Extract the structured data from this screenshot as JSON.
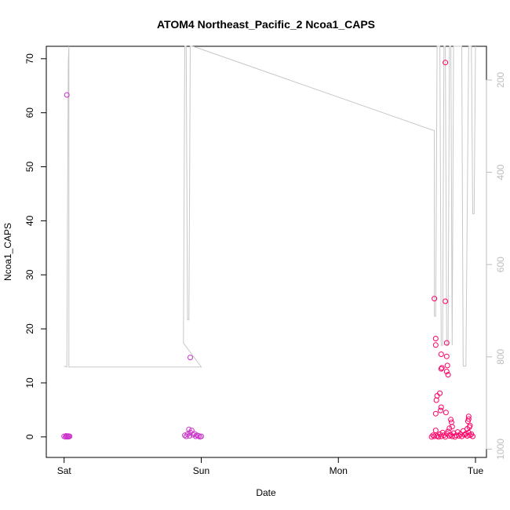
{
  "chart_data": {
    "type": "scatter",
    "title": "ATOM4 Northeast_Pacific_2 Ncoa1_CAPS",
    "xlabel": "Date",
    "ylabel": "Ncoa1_CAPS",
    "x_unit": "days since Sat 00:00",
    "xlim": [
      -0.13,
      3.08
    ],
    "ylim": [
      -3.8,
      72.3
    ],
    "x_ticks": [
      {
        "label": "Sat",
        "value": 0
      },
      {
        "label": "Sun",
        "value": 1
      },
      {
        "label": "Mon",
        "value": 2
      },
      {
        "label": "Tue",
        "value": 3
      }
    ],
    "y_ticks": [
      0,
      10,
      20,
      30,
      40,
      50,
      60,
      70
    ],
    "secondary_axis": {
      "side": "right",
      "reversed": true,
      "color": "#bdbdbd",
      "ticks": [
        200,
        400,
        600,
        800,
        1000
      ],
      "range": [
        1018,
        127
      ]
    },
    "grid": false,
    "legend": "none",
    "colors": {
      "points_early": "#cc33cc",
      "points_late": "#ff0066",
      "depth_line": "#c8c8c8"
    },
    "points": [
      {
        "x": 0.02,
        "y": 63.3
      },
      {
        "x": 0.0,
        "y": 0.1
      },
      {
        "x": 0.01,
        "y": 0.0
      },
      {
        "x": 0.015,
        "y": 0.2
      },
      {
        "x": 0.02,
        "y": 0.1
      },
      {
        "x": 0.025,
        "y": 0.0
      },
      {
        "x": 0.03,
        "y": 0.15
      },
      {
        "x": 0.035,
        "y": 0.05
      },
      {
        "x": 0.04,
        "y": 0.1
      },
      {
        "x": 0.92,
        "y": 14.7
      },
      {
        "x": 0.88,
        "y": 0.3
      },
      {
        "x": 0.89,
        "y": 0.1
      },
      {
        "x": 0.9,
        "y": 0.5
      },
      {
        "x": 0.91,
        "y": 1.4
      },
      {
        "x": 0.915,
        "y": 0.2
      },
      {
        "x": 0.92,
        "y": 0.8
      },
      {
        "x": 0.93,
        "y": 1.2
      },
      {
        "x": 0.94,
        "y": 0.4
      },
      {
        "x": 0.95,
        "y": 0.6
      },
      {
        "x": 0.96,
        "y": 0.1
      },
      {
        "x": 0.97,
        "y": 0.3
      },
      {
        "x": 0.98,
        "y": 0.2
      },
      {
        "x": 0.99,
        "y": 0.0
      },
      {
        "x": 1.0,
        "y": 0.1
      },
      {
        "x": 2.7,
        "y": 25.6
      },
      {
        "x": 2.71,
        "y": 18.2
      },
      {
        "x": 2.71,
        "y": 17.0
      },
      {
        "x": 2.72,
        "y": 7.6
      },
      {
        "x": 2.715,
        "y": 6.8
      },
      {
        "x": 2.71,
        "y": 4.3
      },
      {
        "x": 2.75,
        "y": 15.3
      },
      {
        "x": 2.75,
        "y": 12.6
      },
      {
        "x": 2.755,
        "y": 12.8
      },
      {
        "x": 2.74,
        "y": 8.1
      },
      {
        "x": 2.75,
        "y": 5.5
      },
      {
        "x": 2.745,
        "y": 4.9
      },
      {
        "x": 2.78,
        "y": 69.3
      },
      {
        "x": 2.78,
        "y": 25.1
      },
      {
        "x": 2.79,
        "y": 17.4
      },
      {
        "x": 2.79,
        "y": 14.9
      },
      {
        "x": 2.795,
        "y": 13.2
      },
      {
        "x": 2.79,
        "y": 12.1
      },
      {
        "x": 2.8,
        "y": 11.5
      },
      {
        "x": 2.785,
        "y": 4.5
      },
      {
        "x": 2.82,
        "y": 3.2
      },
      {
        "x": 2.825,
        "y": 2.7
      },
      {
        "x": 2.83,
        "y": 1.9
      },
      {
        "x": 2.81,
        "y": 1.6
      },
      {
        "x": 2.95,
        "y": 3.8
      },
      {
        "x": 2.95,
        "y": 3.3
      },
      {
        "x": 2.945,
        "y": 2.9
      },
      {
        "x": 2.96,
        "y": 2.1
      },
      {
        "x": 2.955,
        "y": 1.8
      },
      {
        "x": 2.94,
        "y": 1.5
      },
      {
        "x": 2.68,
        "y": 0.0
      },
      {
        "x": 2.69,
        "y": 0.3
      },
      {
        "x": 2.7,
        "y": 0.1
      },
      {
        "x": 2.71,
        "y": 1.2
      },
      {
        "x": 2.72,
        "y": 0.2
      },
      {
        "x": 2.73,
        "y": 0.0
      },
      {
        "x": 2.74,
        "y": 0.5
      },
      {
        "x": 2.75,
        "y": 0.1
      },
      {
        "x": 2.76,
        "y": 0.8
      },
      {
        "x": 2.77,
        "y": 0.3
      },
      {
        "x": 2.78,
        "y": 0.0
      },
      {
        "x": 2.79,
        "y": 0.6
      },
      {
        "x": 2.8,
        "y": 1.0
      },
      {
        "x": 2.81,
        "y": 0.2
      },
      {
        "x": 2.82,
        "y": 0.4
      },
      {
        "x": 2.83,
        "y": 0.1
      },
      {
        "x": 2.84,
        "y": 0.7
      },
      {
        "x": 2.85,
        "y": 0.0
      },
      {
        "x": 2.86,
        "y": 0.3
      },
      {
        "x": 2.87,
        "y": 0.9
      },
      {
        "x": 2.88,
        "y": 0.2
      },
      {
        "x": 2.89,
        "y": 0.5
      },
      {
        "x": 2.9,
        "y": 0.1
      },
      {
        "x": 2.91,
        "y": 1.1
      },
      {
        "x": 2.92,
        "y": 0.4
      },
      {
        "x": 2.93,
        "y": 0.6
      },
      {
        "x": 2.94,
        "y": 0.2
      },
      {
        "x": 2.95,
        "y": 0.8
      },
      {
        "x": 2.96,
        "y": 0.3
      },
      {
        "x": 2.97,
        "y": 0.5
      },
      {
        "x": 2.98,
        "y": 0.1
      }
    ],
    "depth_series": [
      {
        "x": 0.0,
        "y": 820
      },
      {
        "x": 0.02,
        "y": 822
      },
      {
        "x": 0.03,
        "y": 160
      },
      {
        "x": 0.035,
        "y": 120
      },
      {
        "x": 0.035,
        "y": 822
      },
      {
        "x": 0.9,
        "y": 822
      },
      {
        "x": 0.95,
        "y": 822
      },
      {
        "x": 1.0,
        "y": 822
      },
      {
        "x": 0.87,
        "y": 770
      },
      {
        "x": 0.88,
        "y": 120
      },
      {
        "x": 0.89,
        "y": 120
      },
      {
        "x": 0.9,
        "y": 720
      },
      {
        "x": 0.91,
        "y": 720
      },
      {
        "x": 0.92,
        "y": 120
      },
      {
        "x": 0.93,
        "y": 120
      },
      {
        "x": 0.95,
        "y": 128
      },
      {
        "x": 2.7,
        "y": 310
      },
      {
        "x": 2.7,
        "y": 712
      },
      {
        "x": 2.71,
        "y": 712
      },
      {
        "x": 2.72,
        "y": 120
      },
      {
        "x": 2.74,
        "y": 120
      },
      {
        "x": 2.75,
        "y": 775
      },
      {
        "x": 2.76,
        "y": 775
      },
      {
        "x": 2.77,
        "y": 120
      },
      {
        "x": 2.78,
        "y": 120
      },
      {
        "x": 2.79,
        "y": 775
      },
      {
        "x": 2.8,
        "y": 775
      },
      {
        "x": 2.81,
        "y": 120
      },
      {
        "x": 2.82,
        "y": 120
      },
      {
        "x": 2.83,
        "y": 775
      },
      {
        "x": 2.84,
        "y": 120
      },
      {
        "x": 2.9,
        "y": 120
      },
      {
        "x": 2.91,
        "y": 820
      },
      {
        "x": 2.93,
        "y": 820
      },
      {
        "x": 2.95,
        "y": 120
      },
      {
        "x": 2.97,
        "y": 120
      },
      {
        "x": 2.98,
        "y": 490
      },
      {
        "x": 2.99,
        "y": 490
      },
      {
        "x": 3.0,
        "y": 120
      }
    ]
  }
}
